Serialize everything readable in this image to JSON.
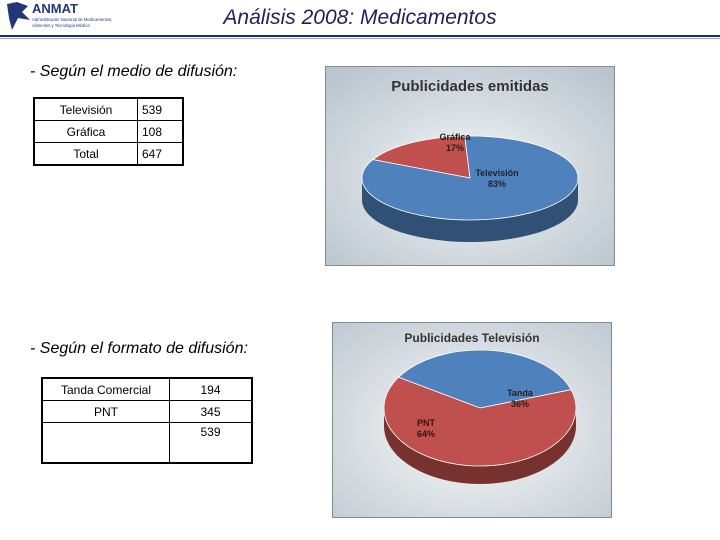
{
  "header": {
    "logo_text": "ANMAT",
    "logo_subtext": [
      "Administración Nacional de Medicamentos,",
      "Alimentos y Tecnología Médica"
    ],
    "title": "Análisis 2008: Medicamentos"
  },
  "section1": {
    "heading": "- Según el medio de difusión:",
    "rows": [
      {
        "label": "Televisión",
        "value": "539"
      },
      {
        "label": "Gráfica",
        "value": "108"
      },
      {
        "label": "Total",
        "value": "647"
      }
    ]
  },
  "section2": {
    "heading": "- Según el formato de difusión:",
    "rows": [
      {
        "label": "Tanda Comercial",
        "value": "194"
      },
      {
        "label": "PNT",
        "value": "345"
      },
      {
        "label": "",
        "value": "539"
      }
    ]
  },
  "colors": {
    "blue": "#4f81bd",
    "red": "#c0504d",
    "frame_bg": "#dfe5ea"
  },
  "chart_data": [
    {
      "type": "pie",
      "title": "Publicidades emitidas",
      "slices": [
        {
          "label": "Gráfica",
          "percent_label": "17%",
          "value": 17,
          "color": "#c0504d"
        },
        {
          "label": "Televisión",
          "percent_label": "83%",
          "value": 83,
          "color": "#4f81bd"
        }
      ]
    },
    {
      "type": "pie",
      "title": "Publicidades Televisión",
      "slices": [
        {
          "label": "Tanda",
          "percent_label": "36%",
          "value": 36,
          "color": "#4f81bd"
        },
        {
          "label": "PNT",
          "percent_label": "64%",
          "value": 64,
          "color": "#c0504d"
        }
      ]
    }
  ]
}
